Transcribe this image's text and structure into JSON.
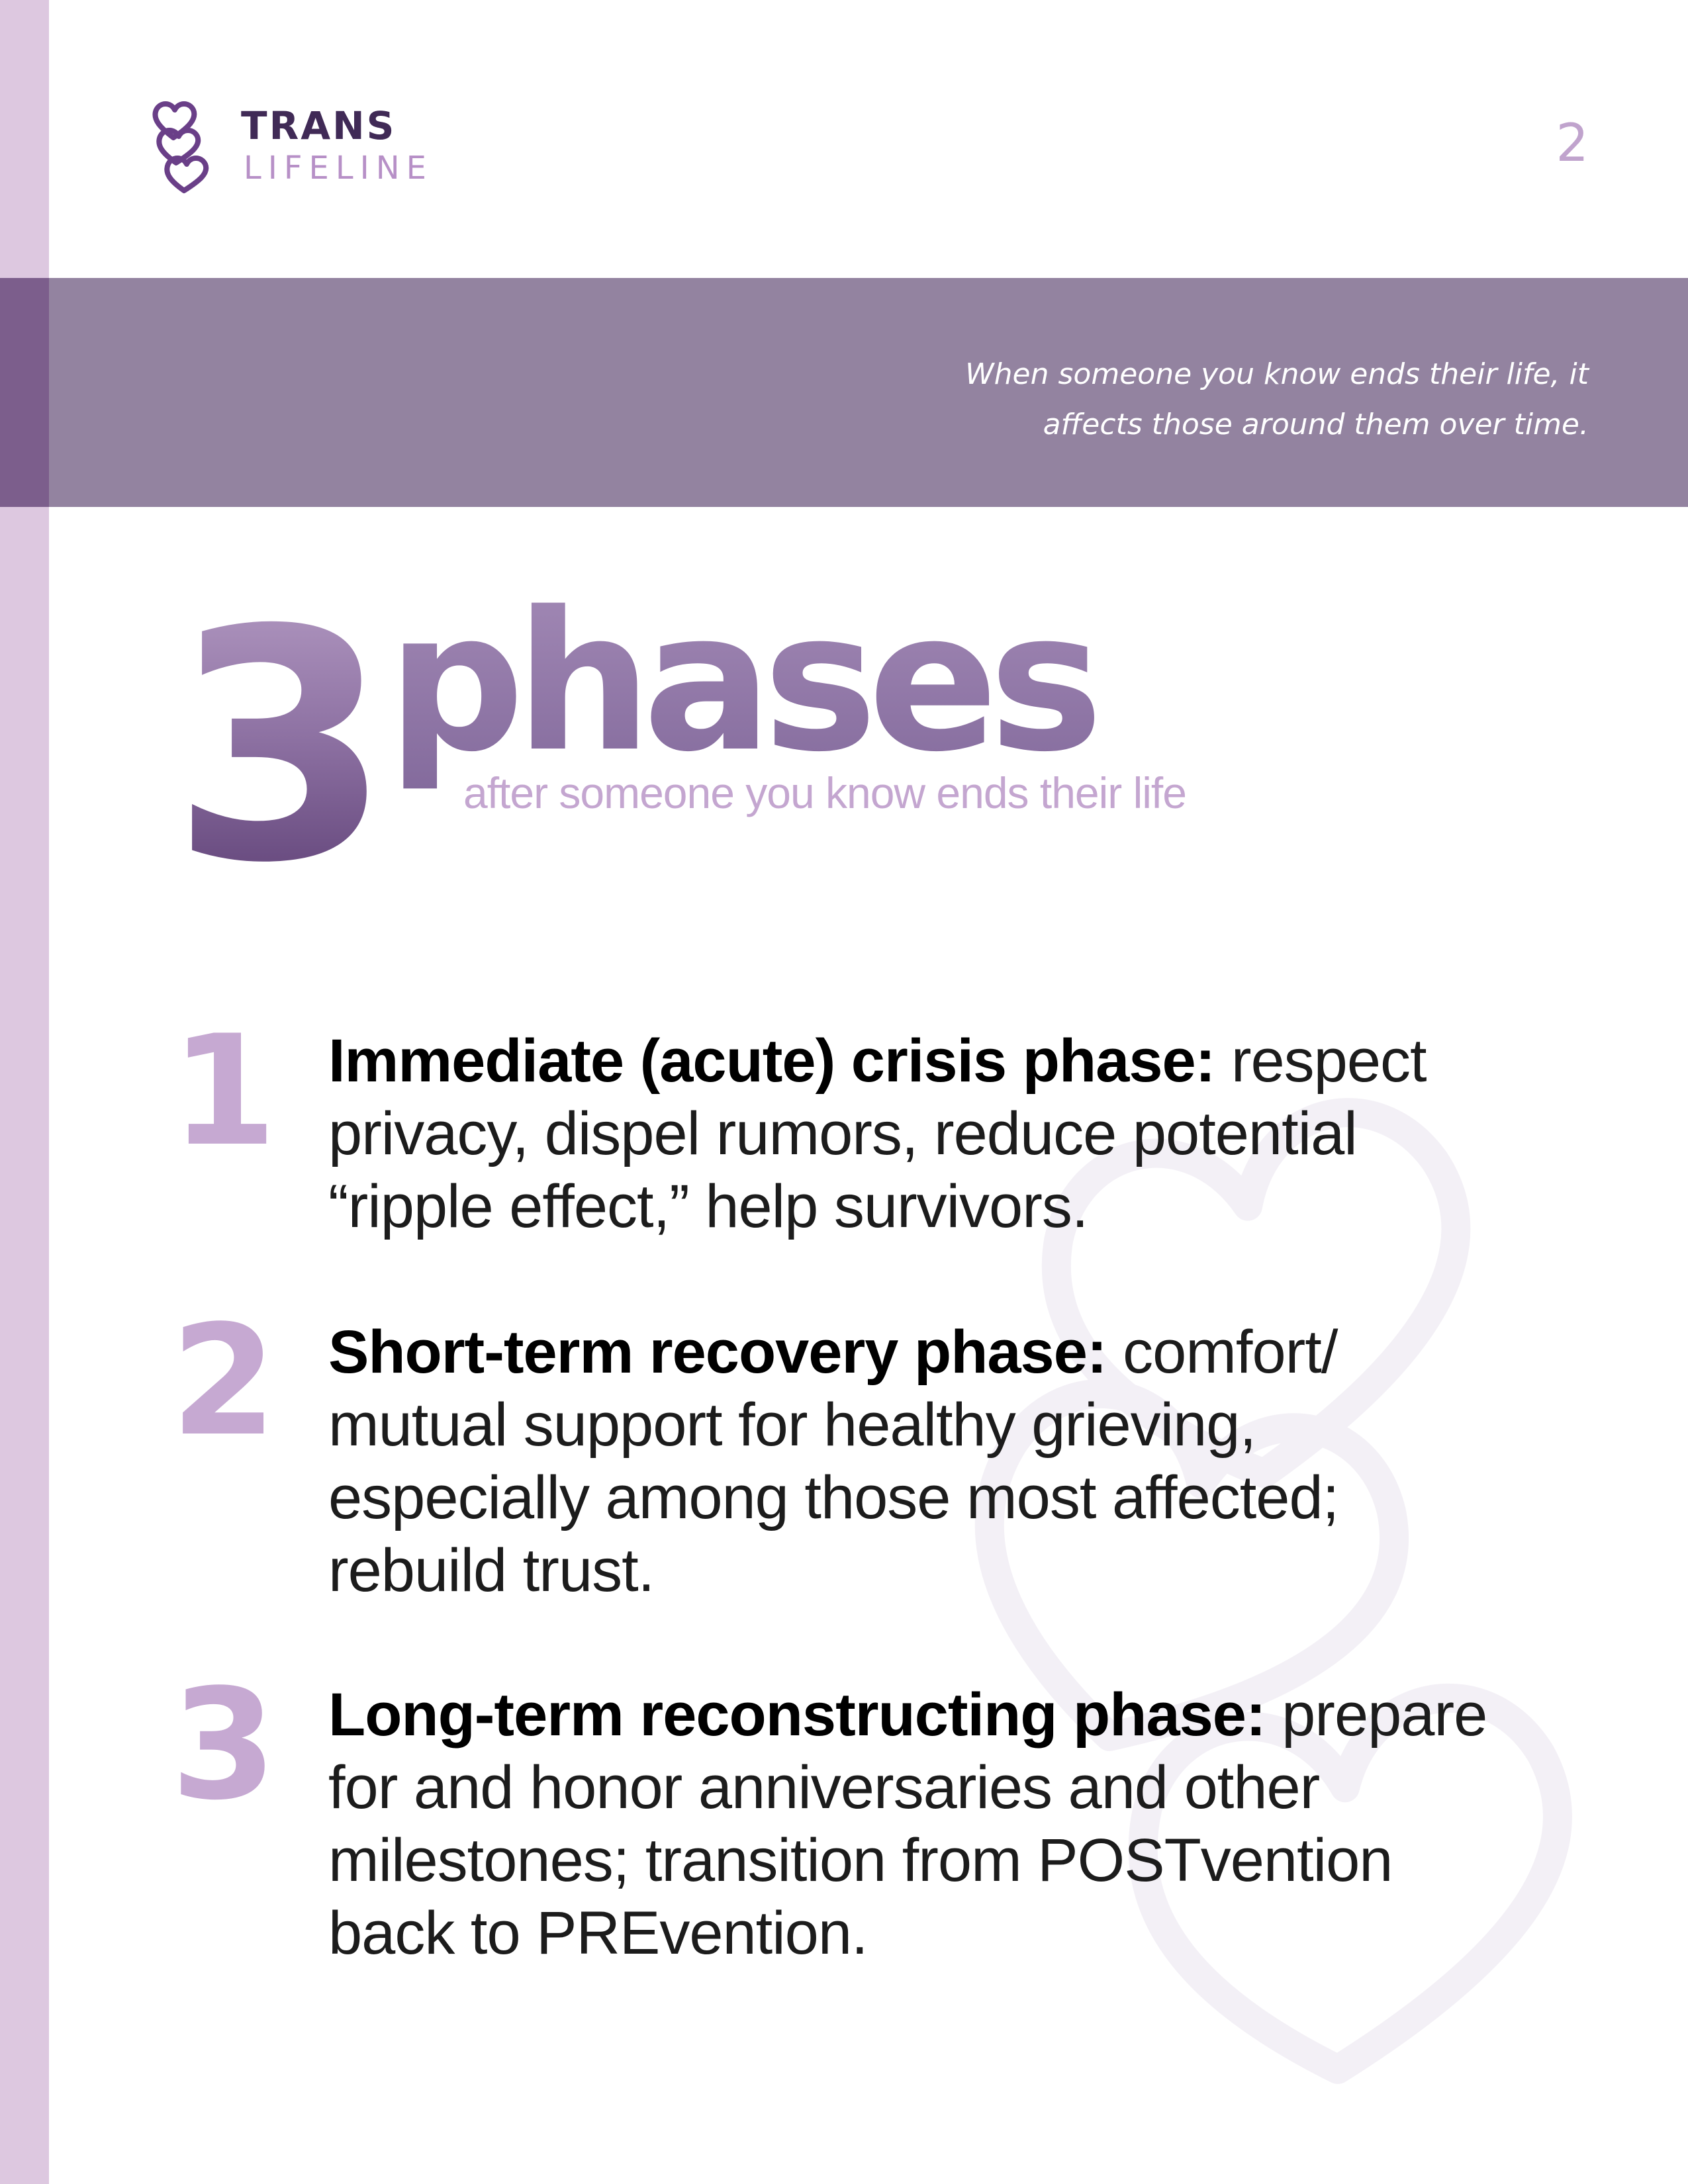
{
  "logo": {
    "line1": "TRANS",
    "line2": "LIFELINE",
    "icon": "hearts-icon"
  },
  "page_number": "2",
  "banner": {
    "text_line1": "When someone you know ends their life, it",
    "text_line2": "affects those around them over time."
  },
  "heading": {
    "number": "3",
    "word": "phases",
    "subtitle": "after someone you know ends their life"
  },
  "phases": [
    {
      "number": "1",
      "title": "Immediate (acute) crisis phase:",
      "line1": " respect",
      "line2": "privacy, dispel rumors, reduce potential",
      "line3": "“ripple effect,” help survivors.",
      "line4": ""
    },
    {
      "number": "2",
      "title": "Short-term recovery phase:",
      "line1": " comfort/",
      "line2": "mutual support for healthy grieving,",
      "line3": "especially among those most affected;",
      "line4": "rebuild trust."
    },
    {
      "number": "3",
      "title": "Long-term reconstructing phase:",
      "line1": " prepare",
      "line2": "for and honor anniversaries and other",
      "line3": "milestones; transition from POSTvention",
      "line4": "back to PREvention."
    }
  ],
  "colors": {
    "banner": "#9383a0",
    "stripe": "#ddc8e0",
    "accent_light": "#c6a9d2",
    "accent_dark": "#5a3c72"
  }
}
